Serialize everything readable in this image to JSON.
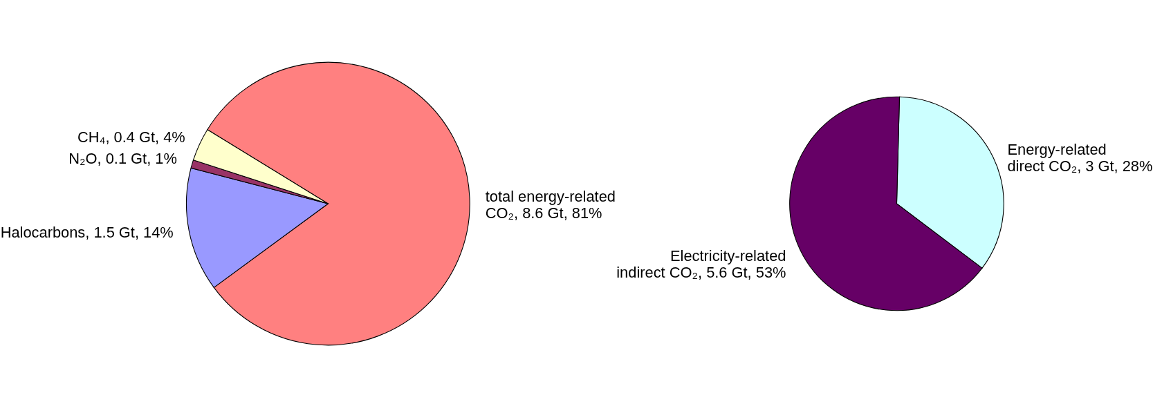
{
  "chart_data": [
    {
      "type": "pie",
      "categories": [
        "total energy-related CO₂",
        "Halocarbons",
        "N₂O",
        "CH₄"
      ],
      "values": [
        8.6,
        1.5,
        0.1,
        0.4
      ],
      "value_labels": [
        "8.6 Gt, 81%",
        "1.5 Gt, 14%",
        "0.1 Gt, 1%",
        "0.4 Gt, 4%"
      ],
      "colors": [
        "#ff8080",
        "#9999ff",
        "#993366",
        "#ffffcc"
      ]
    },
    {
      "type": "pie",
      "categories": [
        "Energy-related direct CO₂",
        "Electricity-related indirect CO₂"
      ],
      "values": [
        3,
        5.6
      ],
      "value_labels": [
        "3 Gt, 28%",
        "5.6 Gt, 53%"
      ],
      "colors": [
        "#ccffff",
        "#660066"
      ]
    }
  ]
}
